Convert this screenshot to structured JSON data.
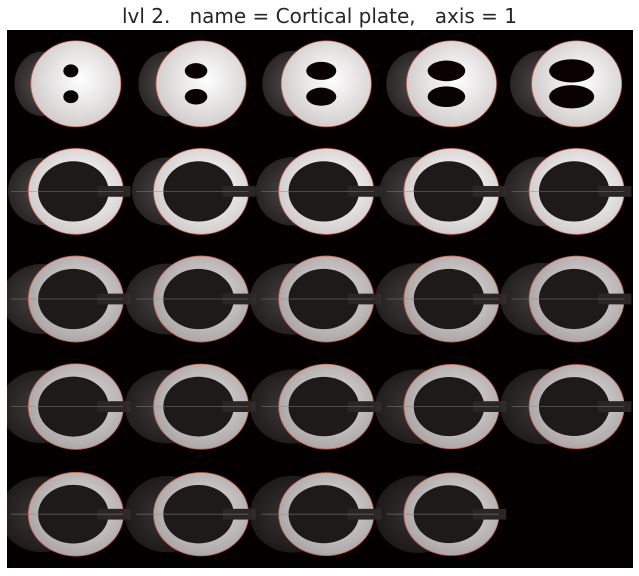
{
  "figure": {
    "title": "lvl 2.   name = Cortical plate,   axis = 1",
    "grid_rows": 5,
    "grid_cols": 5,
    "panel_count": 24,
    "colors": {
      "background": "#050000",
      "brain_gray": "#3c3838",
      "cortex_white": "#f4f2f2",
      "cortex_light": "#d8d4d4",
      "ventricle": "#0a0101",
      "outline": "#c85a3c"
    }
  }
}
